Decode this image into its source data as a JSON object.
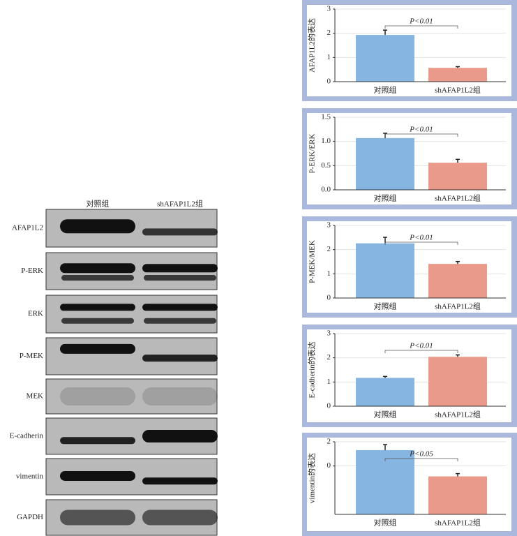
{
  "blot": {
    "columns": [
      "对照组",
      "shAFAP1L2组"
    ],
    "rows": [
      "AFAP1L2",
      "P-ERK",
      "ERK",
      "P-MEK",
      "MEK",
      "E-cadherin",
      "vimentin",
      "GAPDH"
    ]
  },
  "chart_data": [
    {
      "type": "bar",
      "ylabel": "AFAP1L2的表达",
      "categories": [
        "对照组",
        "shAFAP1L2组"
      ],
      "values": [
        1.93,
        0.57
      ],
      "errors": [
        0.2,
        0.05
      ],
      "colors": [
        "#85b5e0",
        "#e99a8a"
      ],
      "annotation": "P<0.01",
      "ylim": [
        0,
        3
      ],
      "yticks": [
        0,
        1,
        2,
        3
      ],
      "grid": true
    },
    {
      "type": "bar",
      "ylabel": "P-ERK/ERK",
      "categories": [
        "对照组",
        "shAFAP1L2组"
      ],
      "values": [
        1.07,
        0.56
      ],
      "errors": [
        0.1,
        0.07
      ],
      "colors": [
        "#85b5e0",
        "#e99a8a"
      ],
      "annotation": "P<0.01",
      "ylim": [
        0,
        1.5
      ],
      "yticks": [
        {
          "value": 0,
          "label": "0.0"
        },
        0.5,
        {
          "value": 1,
          "label": "1.0"
        },
        1.5
      ],
      "grid": true
    },
    {
      "type": "bar",
      "ylabel": "P-MEK/MEK",
      "categories": [
        "对照组",
        "shAFAP1L2组"
      ],
      "values": [
        2.26,
        1.41
      ],
      "errors": [
        0.25,
        0.1
      ],
      "colors": [
        "#85b5e0",
        "#e99a8a"
      ],
      "annotation": "P<0.01",
      "ylim": [
        0,
        3
      ],
      "yticks": [
        0,
        1,
        2,
        3
      ],
      "grid": true
    },
    {
      "type": "bar",
      "ylabel": "E-cadherin的表达",
      "categories": [
        "对照组",
        "shAFAP1L2组"
      ],
      "values": [
        1.17,
        2.04
      ],
      "errors": [
        0.06,
        0.08
      ],
      "colors": [
        "#85b5e0",
        "#e99a8a"
      ],
      "annotation": "P<0.01",
      "ylim": [
        0,
        3
      ],
      "yticks": [
        0,
        1,
        2,
        3
      ],
      "grid": true
    },
    {
      "type": "bar",
      "ylabel": "vimentin的表达",
      "categories": [
        "对照组",
        "shAFAP1L2组"
      ],
      "values": [
        1.31,
        -0.86
      ],
      "errors": [
        0.46,
        0.23
      ],
      "colors": [
        "#85b5e0",
        "#e99a8a"
      ],
      "annotation": "P<0.05",
      "ylim": [
        -4,
        2
      ],
      "yticks": [
        0,
        2
      ],
      "grid": true
    }
  ]
}
